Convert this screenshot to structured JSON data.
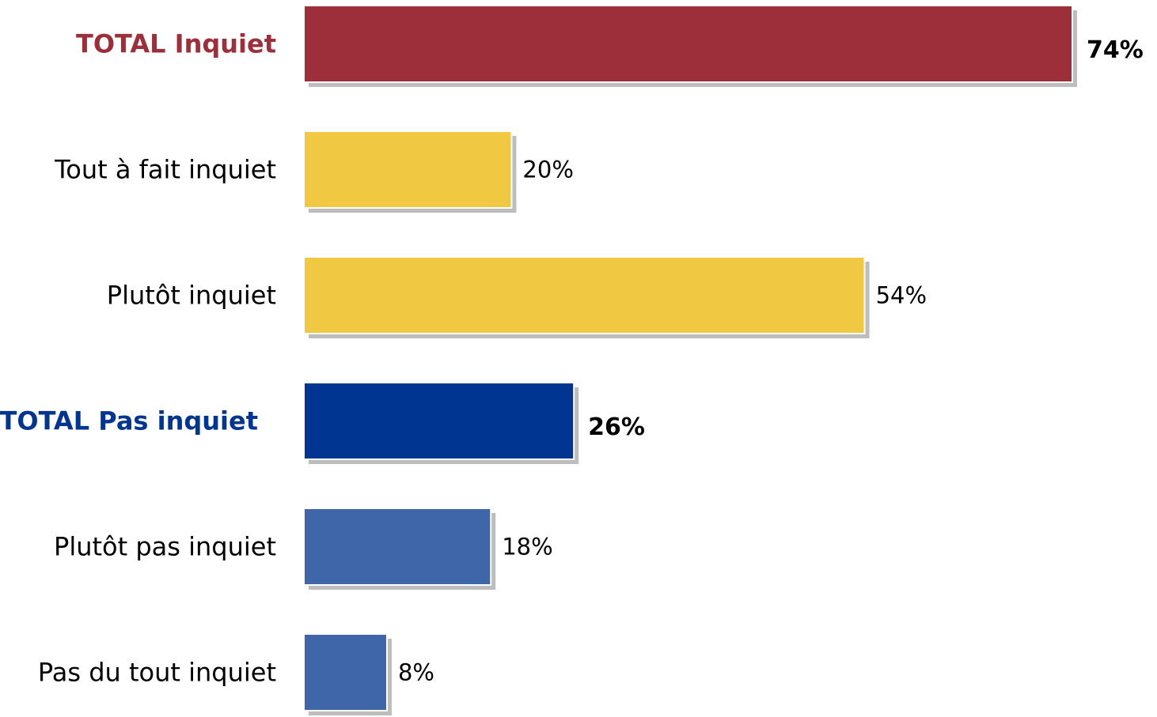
{
  "chart_data": {
    "type": "bar",
    "orientation": "horizontal",
    "categories": [
      "TOTAL Inquiet",
      "Tout à fait inquiet",
      "Plutôt inquiet",
      "TOTAL Pas inquiet",
      "Plutôt pas inquiet",
      "Pas du tout inquiet"
    ],
    "values": [
      74,
      20,
      54,
      26,
      18,
      8
    ],
    "value_labels": [
      "74%",
      "20%",
      "54%",
      "26%",
      "18%",
      "8%"
    ],
    "is_total": [
      true,
      false,
      false,
      true,
      false,
      false
    ],
    "colors": [
      "#9c2f3a",
      "#f0c842",
      "#f0c842",
      "#003591",
      "#3f66a9",
      "#3f66a9"
    ],
    "label_colors": [
      "#9c2f3a",
      "#000000",
      "#000000",
      "#003591",
      "#000000",
      "#000000"
    ],
    "xlim": [
      0,
      74
    ],
    "grid": false,
    "legend": "none",
    "title": "",
    "xlabel": "",
    "ylabel": ""
  }
}
